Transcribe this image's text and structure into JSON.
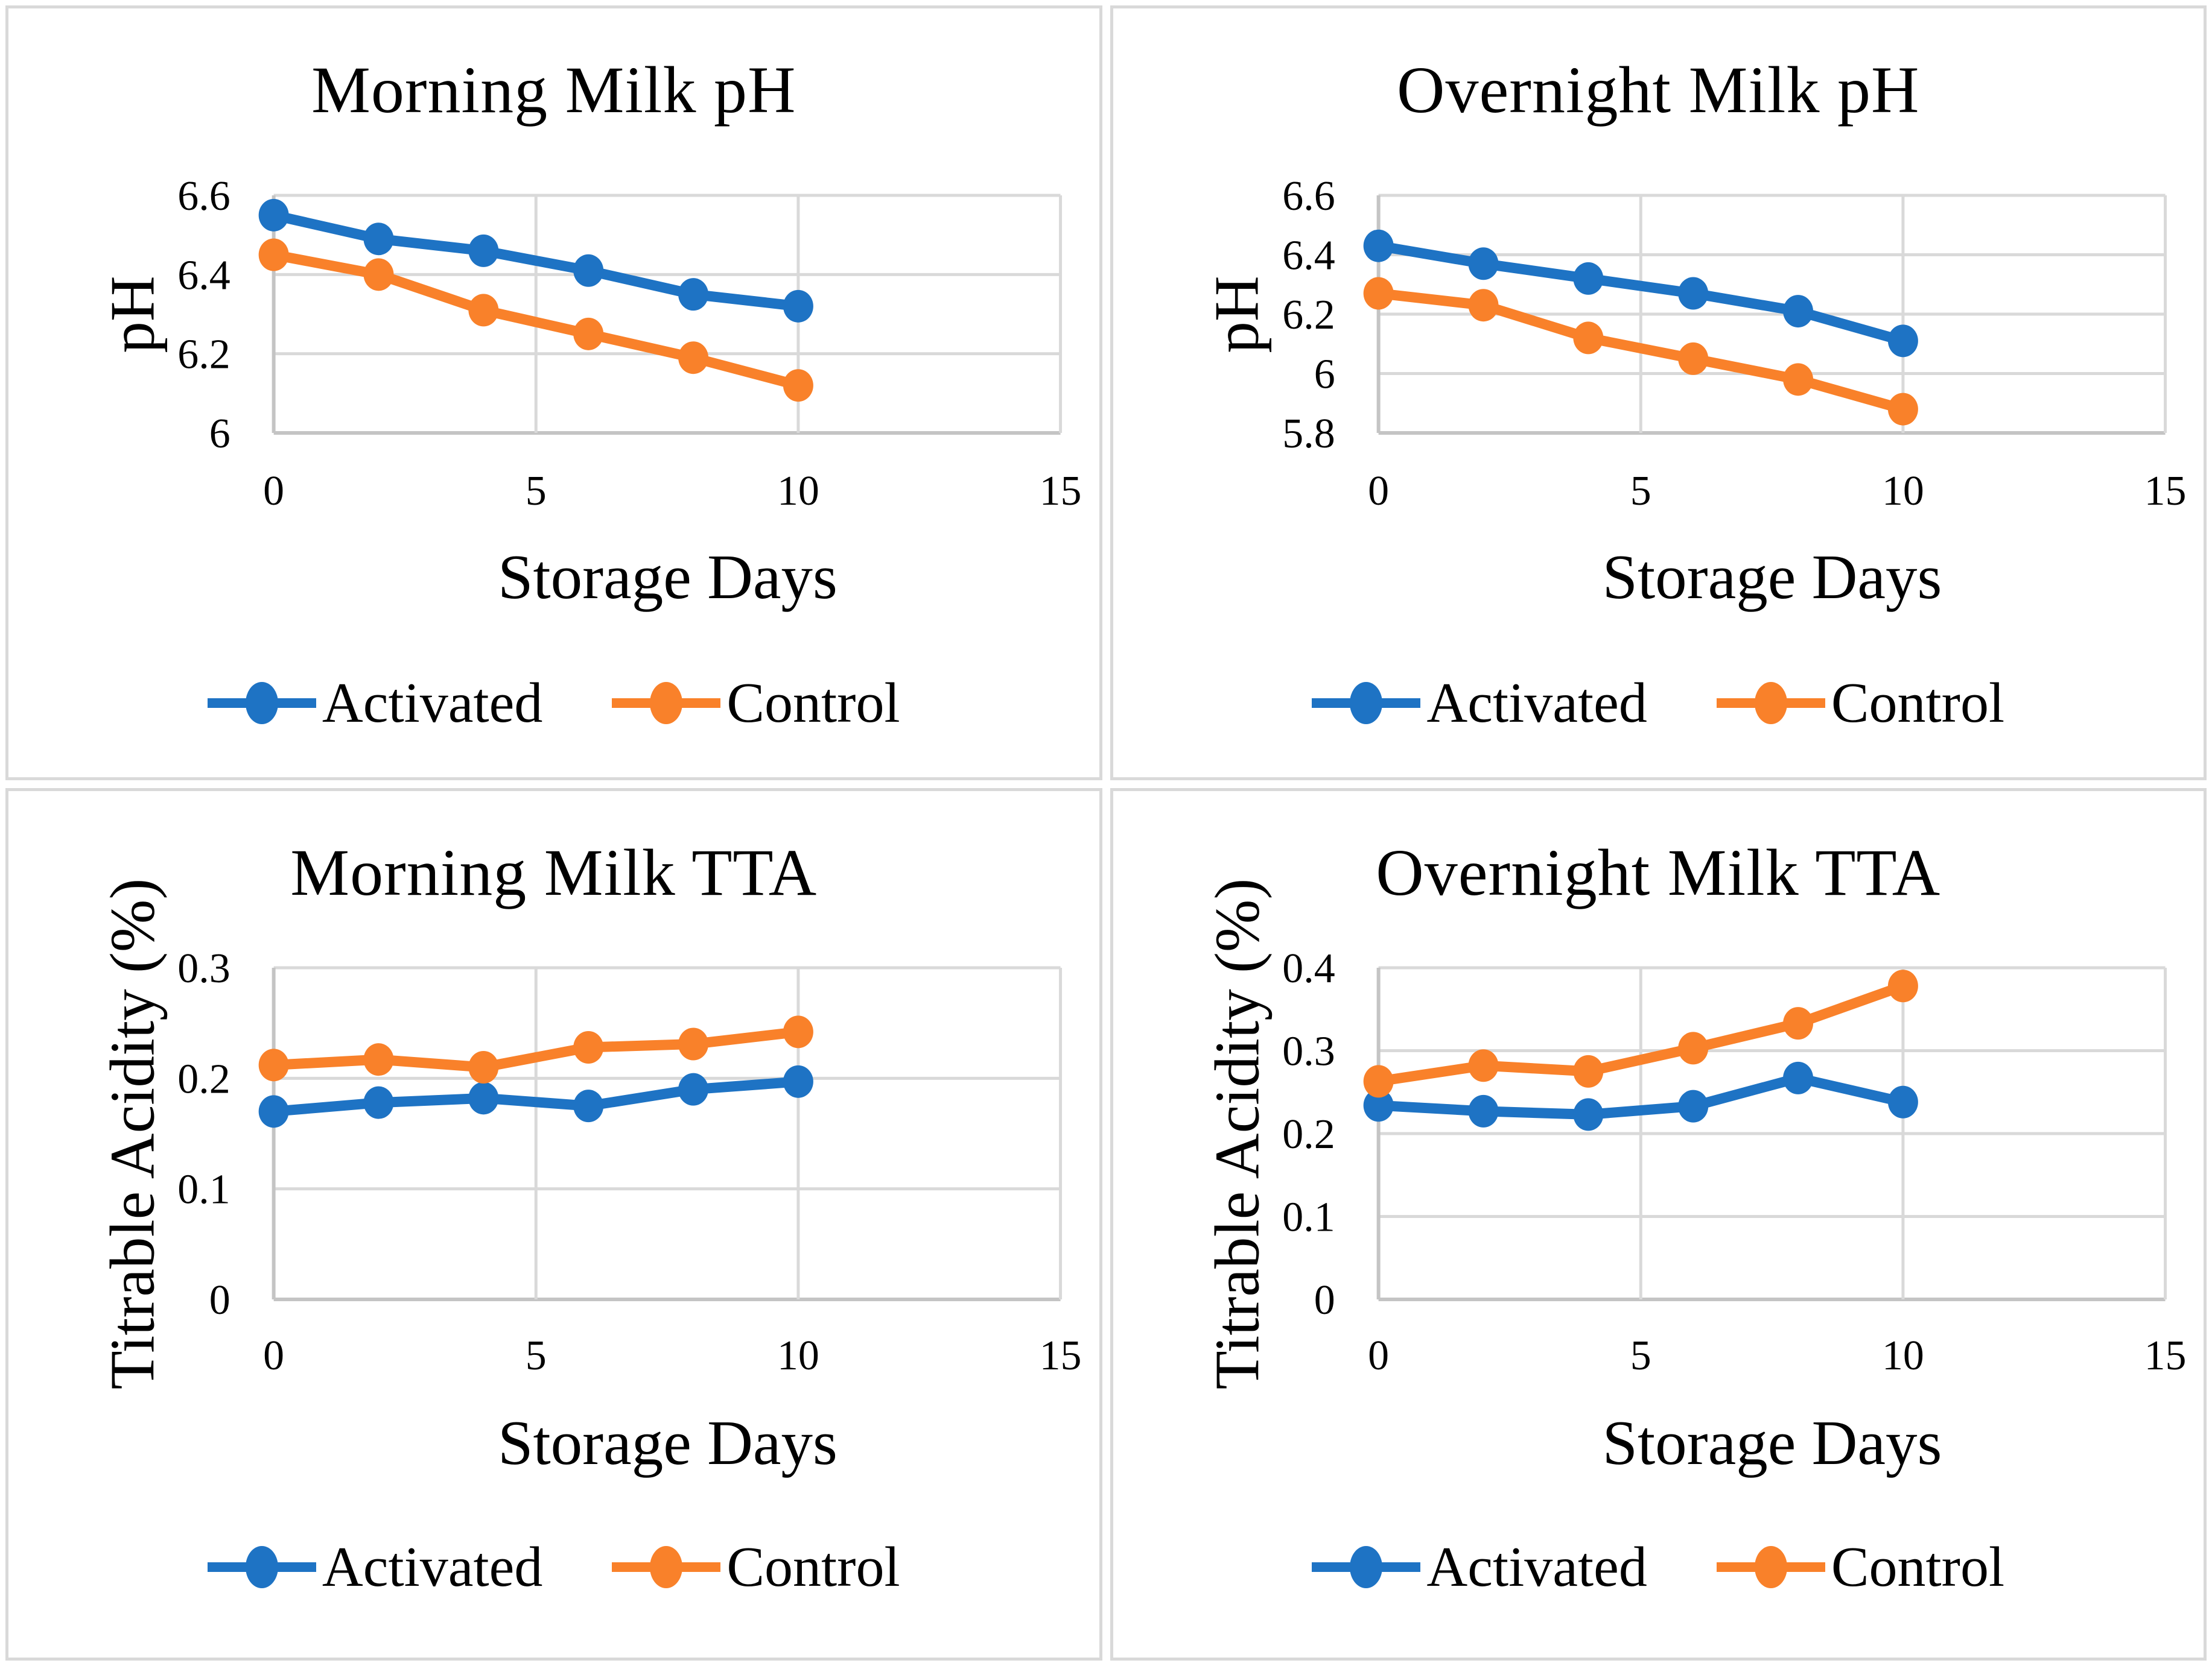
{
  "page": {
    "background": "#ffffff",
    "panel_border_color": "#d9d9d9",
    "gridline_color": "#d9d9d9",
    "axis_line_color": "#c4c4c4",
    "text_color": "#000000",
    "accent_blue": "#1e73c4",
    "accent_orange": "#f9812a"
  },
  "chart_data": [
    {
      "type": "line",
      "title": "Morning Milk pH",
      "xlabel": "Storage Days",
      "ylabel": "pH",
      "x": [
        0,
        2,
        4,
        6,
        8,
        10
      ],
      "xlim": [
        0,
        15
      ],
      "xticks": [
        0,
        5,
        10,
        15
      ],
      "xtick_labels": [
        "0",
        "5",
        "10",
        "15"
      ],
      "ylim": [
        6,
        6.6
      ],
      "yticks": [
        6,
        6.2,
        6.4,
        6.6
      ],
      "ytick_labels": [
        "6",
        "6.2",
        "6.4",
        "6.6"
      ],
      "grid": true,
      "legend_position": "bottom",
      "series": [
        {
          "name": "Activated",
          "color": "#1e73c4",
          "values": [
            6.55,
            6.49,
            6.46,
            6.41,
            6.35,
            6.32
          ]
        },
        {
          "name": "Control",
          "color": "#f9812a",
          "values": [
            6.45,
            6.4,
            6.31,
            6.25,
            6.19,
            6.12
          ]
        }
      ]
    },
    {
      "type": "line",
      "title": "Overnight Milk pH",
      "xlabel": "Storage Days",
      "ylabel": "pH",
      "x": [
        0,
        2,
        4,
        6,
        8,
        10
      ],
      "xlim": [
        0,
        15
      ],
      "xticks": [
        0,
        5,
        10,
        15
      ],
      "xtick_labels": [
        "0",
        "5",
        "10",
        "15"
      ],
      "ylim": [
        5.8,
        6.6
      ],
      "yticks": [
        5.8,
        6,
        6.2,
        6.4,
        6.6
      ],
      "ytick_labels": [
        "5.8",
        "6",
        "6.2",
        "6.4",
        "6.6"
      ],
      "grid": true,
      "legend_position": "bottom",
      "series": [
        {
          "name": "Activated",
          "color": "#1e73c4",
          "values": [
            6.43,
            6.37,
            6.32,
            6.27,
            6.21,
            6.11
          ]
        },
        {
          "name": "Control",
          "color": "#f9812a",
          "values": [
            6.27,
            6.23,
            6.12,
            6.05,
            5.98,
            5.88
          ]
        }
      ]
    },
    {
      "type": "line",
      "title": "Morning Milk TTA",
      "xlabel": "Storage Days",
      "ylabel": "Titrable Acidity (%)",
      "x": [
        0,
        2,
        4,
        6,
        8,
        10
      ],
      "xlim": [
        0,
        15
      ],
      "xticks": [
        0,
        5,
        10,
        15
      ],
      "xtick_labels": [
        "0",
        "5",
        "10",
        "15"
      ],
      "ylim": [
        0,
        0.3
      ],
      "yticks": [
        0,
        0.1,
        0.2,
        0.3
      ],
      "ytick_labels": [
        "0",
        "0.1",
        "0.2",
        "0.3"
      ],
      "grid": true,
      "legend_position": "bottom",
      "series": [
        {
          "name": "Activated",
          "color": "#1e73c4",
          "values": [
            0.17,
            0.178,
            0.182,
            0.175,
            0.19,
            0.197
          ]
        },
        {
          "name": "Control",
          "color": "#f9812a",
          "values": [
            0.212,
            0.217,
            0.21,
            0.228,
            0.231,
            0.242
          ]
        }
      ]
    },
    {
      "type": "line",
      "title": "Overnight Milk TTA",
      "xlabel": "Storage Days",
      "ylabel": "Titrable Acidity (%)",
      "x": [
        0,
        2,
        4,
        6,
        8,
        10
      ],
      "xlim": [
        0,
        15
      ],
      "xticks": [
        0,
        5,
        10,
        15
      ],
      "xtick_labels": [
        "0",
        "5",
        "10",
        "15"
      ],
      "ylim": [
        0,
        0.4
      ],
      "yticks": [
        0,
        0.1,
        0.2,
        0.3,
        0.4
      ],
      "ytick_labels": [
        "0",
        "0.1",
        "0.2",
        "0.3",
        "0.4"
      ],
      "grid": true,
      "legend_position": "bottom",
      "series": [
        {
          "name": "Activated",
          "color": "#1e73c4",
          "values": [
            0.234,
            0.227,
            0.223,
            0.233,
            0.267,
            0.238
          ]
        },
        {
          "name": "Control",
          "color": "#f9812a",
          "values": [
            0.263,
            0.282,
            0.275,
            0.303,
            0.333,
            0.378
          ]
        }
      ]
    }
  ]
}
